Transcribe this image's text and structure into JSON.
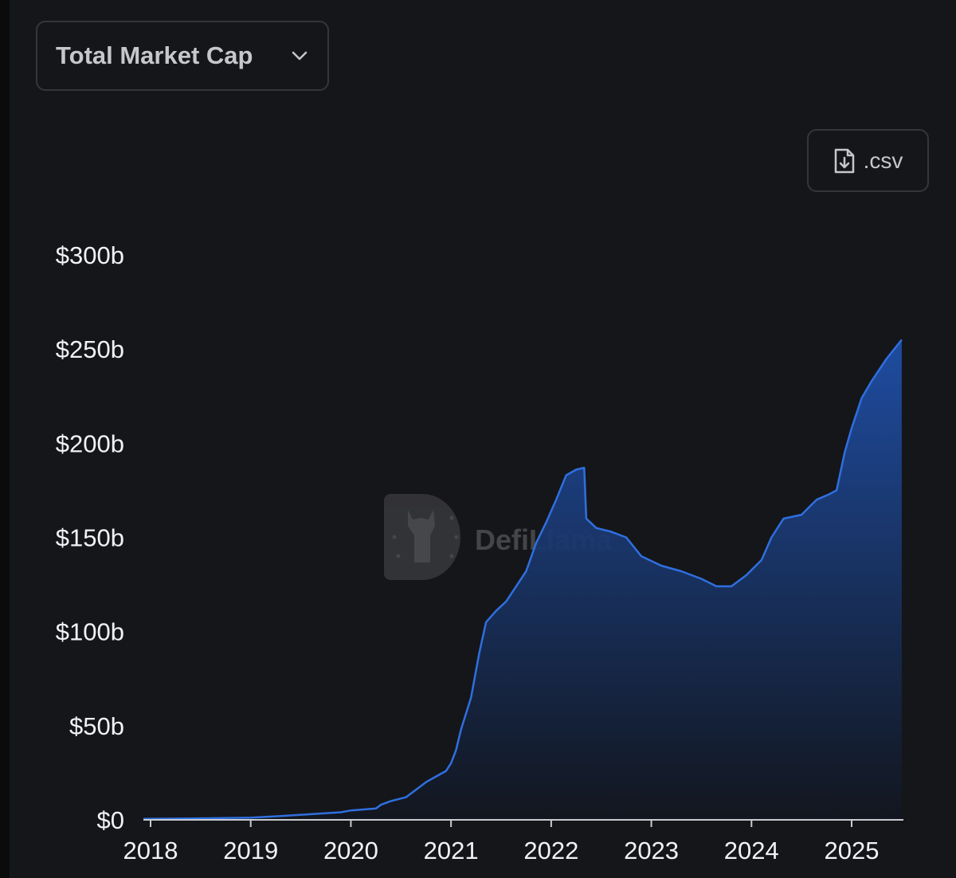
{
  "metric_selector": {
    "label": "Total Market Cap",
    "icon": "chevron-down-icon"
  },
  "download": {
    "label": ".csv",
    "icon": "file-download-icon"
  },
  "watermark": {
    "text": "DefiLlama",
    "icon": "llama-logo-icon"
  },
  "colors": {
    "background": "#151619",
    "line": "#2f6fe0",
    "area_top": "#1f4fa8",
    "area_bottom": "#12161f",
    "axis": "#c8cacf"
  },
  "chart_data": {
    "type": "area",
    "title": "",
    "xlabel": "",
    "ylabel": "",
    "ylim": [
      0,
      300
    ],
    "xlim": [
      2017.9,
      2025.5
    ],
    "y_ticks": [
      {
        "value": 0,
        "label": "$0"
      },
      {
        "value": 50,
        "label": "$50b"
      },
      {
        "value": 100,
        "label": "$100b"
      },
      {
        "value": 150,
        "label": "$150b"
      },
      {
        "value": 200,
        "label": "$200b"
      },
      {
        "value": 250,
        "label": "$250b"
      },
      {
        "value": 300,
        "label": "$300b"
      }
    ],
    "x_ticks": [
      {
        "value": 2018,
        "label": "2018"
      },
      {
        "value": 2019,
        "label": "2019"
      },
      {
        "value": 2020,
        "label": "2020"
      },
      {
        "value": 2021,
        "label": "2021"
      },
      {
        "value": 2022,
        "label": "2022"
      },
      {
        "value": 2023,
        "label": "2023"
      },
      {
        "value": 2024,
        "label": "2024"
      },
      {
        "value": 2025,
        "label": "2025"
      }
    ],
    "grid": false,
    "legend": "none",
    "series": [
      {
        "points": [
          [
            2017.9,
            0.5
          ],
          [
            2018.5,
            0.8
          ],
          [
            2019.0,
            1.2
          ],
          [
            2019.3,
            2.0
          ],
          [
            2019.6,
            3.0
          ],
          [
            2019.9,
            4.0
          ],
          [
            2020.0,
            5.0
          ],
          [
            2020.25,
            6.0
          ],
          [
            2020.3,
            8.0
          ],
          [
            2020.4,
            10.0
          ],
          [
            2020.55,
            12.0
          ],
          [
            2020.65,
            16.0
          ],
          [
            2020.75,
            20.0
          ],
          [
            2020.85,
            23.0
          ],
          [
            2020.95,
            26.0
          ],
          [
            2021.0,
            30.0
          ],
          [
            2021.05,
            37.0
          ],
          [
            2021.1,
            48.0
          ],
          [
            2021.2,
            65.0
          ],
          [
            2021.28,
            88.0
          ],
          [
            2021.35,
            105.0
          ],
          [
            2021.45,
            111.0
          ],
          [
            2021.55,
            116.0
          ],
          [
            2021.65,
            124.0
          ],
          [
            2021.75,
            132.0
          ],
          [
            2021.85,
            147.0
          ],
          [
            2021.95,
            158.0
          ],
          [
            2022.05,
            170.0
          ],
          [
            2022.15,
            183.0
          ],
          [
            2022.25,
            186.0
          ],
          [
            2022.33,
            187.0
          ],
          [
            2022.35,
            160.0
          ],
          [
            2022.45,
            155.0
          ],
          [
            2022.6,
            153.0
          ],
          [
            2022.75,
            150.0
          ],
          [
            2022.9,
            140.0
          ],
          [
            2023.1,
            135.0
          ],
          [
            2023.3,
            132.0
          ],
          [
            2023.5,
            128.0
          ],
          [
            2023.65,
            124.0
          ],
          [
            2023.8,
            124.0
          ],
          [
            2023.95,
            130.0
          ],
          [
            2024.1,
            138.0
          ],
          [
            2024.2,
            150.0
          ],
          [
            2024.32,
            160.0
          ],
          [
            2024.5,
            162.0
          ],
          [
            2024.65,
            170.0
          ],
          [
            2024.78,
            173.0
          ],
          [
            2024.85,
            175.0
          ],
          [
            2024.93,
            195.0
          ],
          [
            2025.0,
            208.0
          ],
          [
            2025.1,
            224.0
          ],
          [
            2025.2,
            233.0
          ],
          [
            2025.35,
            245.0
          ],
          [
            2025.5,
            255.0
          ]
        ]
      }
    ]
  }
}
